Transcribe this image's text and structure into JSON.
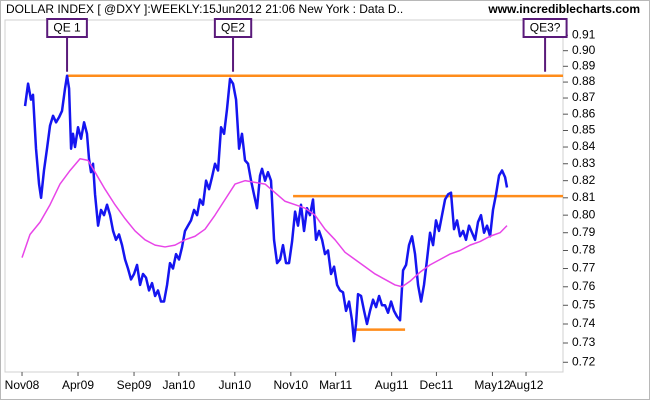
{
  "chart_data": {
    "type": "line",
    "title": "DOLLAR INDEX [ @DXY ]:WEEKLY:15Jun2012 21:06 New York : Data D..",
    "source": "www.incrediblecharts.com",
    "log": true,
    "xlim": [
      8.48,
      58.3
    ],
    "xticks": [
      {
        "value": 10,
        "label": "Nov08"
      },
      {
        "value": 15,
        "label": "Apr09"
      },
      {
        "value": 20,
        "label": "Sep09"
      },
      {
        "value": 24,
        "label": "Jan10"
      },
      {
        "value": 29,
        "label": "Jun10"
      },
      {
        "value": 34,
        "label": "Nov10"
      },
      {
        "value": 38,
        "label": "Mar11"
      },
      {
        "value": 43,
        "label": "Aug11"
      },
      {
        "value": 47,
        "label": "Dec11"
      },
      {
        "value": 52,
        "label": "May12"
      },
      {
        "value": 55,
        "label": "Aug12"
      }
    ],
    "ylim": [
      0.715,
      0.92
    ],
    "yticks": [
      0.72,
      0.73,
      0.74,
      0.75,
      0.76,
      0.77,
      0.78,
      0.79,
      {
        "value": 0.8,
        "label": "0.80"
      },
      0.81,
      0.82,
      0.83,
      0.84,
      0.85,
      0.86,
      0.87,
      0.88,
      0.89,
      {
        "value": 0.9,
        "label": "0.90"
      },
      0.91
    ],
    "series": [
      {
        "color": "#1515f0",
        "width": 2.5,
        "x": [
          10.27,
          10.54,
          10.8,
          10.98,
          11.25,
          11.52,
          11.7,
          11.96,
          12.23,
          12.5,
          12.77,
          13.04,
          13.3,
          13.57,
          13.84,
          14.02,
          14.2,
          14.38,
          14.55,
          14.73,
          15.0,
          15.27,
          15.54,
          15.8,
          15.98,
          16.16,
          16.34,
          16.52,
          16.79,
          17.05,
          17.32,
          17.59,
          17.86,
          18.13,
          18.39,
          18.66,
          18.93,
          19.2,
          19.46,
          19.73,
          20.0,
          20.27,
          20.54,
          20.8,
          21.07,
          21.34,
          21.61,
          21.88,
          22.14,
          22.41,
          22.68,
          22.95,
          23.21,
          23.48,
          23.75,
          24.02,
          24.29,
          24.55,
          24.82,
          25.09,
          25.36,
          25.63,
          25.89,
          26.16,
          26.43,
          26.7,
          26.96,
          27.23,
          27.5,
          27.77,
          28.04,
          28.3,
          28.57,
          28.84,
          29.11,
          29.38,
          29.64,
          29.91,
          30.18,
          30.45,
          30.71,
          30.98,
          31.25,
          31.43,
          31.7,
          31.96,
          32.23,
          32.5,
          32.77,
          33.04,
          33.3,
          33.57,
          33.84,
          34.11,
          34.38,
          34.64,
          34.91,
          35.18,
          35.45,
          35.71,
          35.98,
          36.25,
          36.52,
          36.79,
          37.05,
          37.32,
          37.59,
          37.86,
          38.13,
          38.39,
          38.66,
          38.93,
          39.2,
          39.46,
          39.64,
          39.82,
          40.0,
          40.27,
          40.54,
          40.8,
          41.07,
          41.34,
          41.61,
          41.88,
          42.14,
          42.41,
          42.68,
          42.95,
          43.21,
          43.48,
          43.75,
          44.02,
          44.29,
          44.55,
          44.82,
          45.09,
          45.36,
          45.63,
          45.89,
          46.16,
          46.43,
          46.7,
          46.96,
          47.23,
          47.5,
          47.77,
          48.04,
          48.3,
          48.57,
          48.84,
          49.11,
          49.38,
          49.64,
          49.91,
          50.18,
          50.45,
          50.71,
          50.98,
          51.25,
          51.52,
          51.79,
          52.05,
          52.32,
          52.59,
          52.86,
          53.13,
          53.3
        ],
        "values": [
          0.865,
          0.879,
          0.869,
          0.872,
          0.839,
          0.818,
          0.81,
          0.826,
          0.839,
          0.853,
          0.859,
          0.855,
          0.858,
          0.862,
          0.876,
          0.884,
          0.876,
          0.839,
          0.848,
          0.84,
          0.852,
          0.845,
          0.855,
          0.848,
          0.833,
          0.825,
          0.83,
          0.812,
          0.794,
          0.803,
          0.8,
          0.806,
          0.8,
          0.791,
          0.786,
          0.789,
          0.783,
          0.775,
          0.77,
          0.764,
          0.767,
          0.772,
          0.761,
          0.767,
          0.765,
          0.758,
          0.762,
          0.755,
          0.758,
          0.752,
          0.752,
          0.761,
          0.773,
          0.77,
          0.778,
          0.775,
          0.782,
          0.791,
          0.794,
          0.797,
          0.803,
          0.8,
          0.809,
          0.806,
          0.82,
          0.815,
          0.822,
          0.83,
          0.826,
          0.852,
          0.848,
          0.863,
          0.882,
          0.879,
          0.869,
          0.839,
          0.848,
          0.832,
          0.83,
          0.82,
          0.812,
          0.804,
          0.823,
          0.827,
          0.82,
          0.825,
          0.82,
          0.786,
          0.773,
          0.775,
          0.783,
          0.773,
          0.773,
          0.785,
          0.802,
          0.794,
          0.806,
          0.791,
          0.804,
          0.8,
          0.809,
          0.786,
          0.791,
          0.786,
          0.778,
          0.78,
          0.767,
          0.771,
          0.761,
          0.758,
          0.757,
          0.747,
          0.752,
          0.742,
          0.731,
          0.74,
          0.756,
          0.755,
          0.747,
          0.74,
          0.747,
          0.753,
          0.749,
          0.755,
          0.75,
          0.75,
          0.746,
          0.752,
          0.747,
          0.744,
          0.742,
          0.769,
          0.772,
          0.783,
          0.788,
          0.778,
          0.761,
          0.752,
          0.761,
          0.775,
          0.79,
          0.783,
          0.797,
          0.791,
          0.8,
          0.809,
          0.812,
          0.813,
          0.792,
          0.797,
          0.788,
          0.791,
          0.786,
          0.794,
          0.79,
          0.786,
          0.796,
          0.8,
          0.79,
          0.794,
          0.788,
          0.803,
          0.812,
          0.823,
          0.826,
          0.822,
          0.816
        ]
      },
      {
        "color": "#e845e8",
        "width": 1.5,
        "x": [
          10.0,
          10.71,
          11.61,
          12.5,
          13.39,
          14.29,
          15.18,
          15.89,
          16.52,
          17.41,
          18.3,
          19.2,
          20.09,
          20.98,
          21.88,
          22.77,
          23.66,
          24.55,
          25.45,
          26.34,
          27.23,
          28.13,
          29.02,
          29.91,
          30.8,
          31.7,
          32.59,
          33.48,
          34.38,
          35.27,
          36.16,
          37.05,
          37.95,
          38.84,
          39.73,
          40.63,
          41.52,
          42.41,
          43.3,
          43.93,
          44.64,
          45.54,
          46.43,
          47.32,
          48.21,
          49.11,
          50.0,
          50.89,
          51.79,
          52.68,
          53.3
        ],
        "values": [
          0.776,
          0.789,
          0.796,
          0.806,
          0.818,
          0.826,
          0.833,
          0.832,
          0.825,
          0.815,
          0.806,
          0.798,
          0.791,
          0.786,
          0.783,
          0.782,
          0.783,
          0.786,
          0.788,
          0.792,
          0.8,
          0.809,
          0.818,
          0.82,
          0.819,
          0.818,
          0.813,
          0.808,
          0.806,
          0.804,
          0.8,
          0.792,
          0.786,
          0.779,
          0.775,
          0.771,
          0.767,
          0.764,
          0.761,
          0.76,
          0.763,
          0.768,
          0.772,
          0.775,
          0.778,
          0.78,
          0.783,
          0.785,
          0.788,
          0.79,
          0.794
        ]
      }
    ],
    "levels": [
      {
        "value": 0.884,
        "x": [
          14.02,
          58.3
        ],
        "color": "#ff8c1a"
      },
      {
        "value": 0.811,
        "x": [
          34.2,
          58.3
        ],
        "color": "#ff8c1a"
      },
      {
        "value": 0.737,
        "x": [
          39.73,
          44.2
        ],
        "color": "#ff8c1a"
      }
    ],
    "annotations": [
      {
        "text": "QE 1",
        "x": 14.02,
        "color": "#5a1a7a"
      },
      {
        "text": "QE2",
        "x": 28.84,
        "color": "#5a1a7a"
      },
      {
        "text": "QE3?",
        "x": 56.7,
        "color": "#5a1a7a"
      }
    ]
  }
}
